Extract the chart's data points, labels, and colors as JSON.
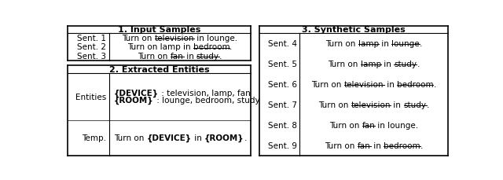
{
  "title1": "1. Input Samples",
  "title2": "2. Extracted Entities",
  "title3": "3. Synthetic Samples",
  "bg_color": "#ffffff",
  "text_color": "#000000",
  "font_size": 7.5,
  "input_parts": [
    [
      [
        "Turn on ",
        false
      ],
      [
        "television",
        true
      ],
      [
        " in lounge.",
        false
      ]
    ],
    [
      [
        "Turn on lamp in ",
        false
      ],
      [
        "bedroom",
        true
      ],
      [
        ".",
        false
      ]
    ],
    [
      [
        "Turn on ",
        false
      ],
      [
        "fan",
        true
      ],
      [
        " in ",
        false
      ],
      [
        "study",
        true
      ],
      [
        ".",
        false
      ]
    ]
  ],
  "input_labels": [
    "Sent. 1",
    "Sent. 2",
    "Sent. 3"
  ],
  "synthetic_labels": [
    "Sent. 4",
    "Sent. 5",
    "Sent. 6",
    "Sent. 7",
    "Sent. 8",
    "Sent. 9"
  ],
  "synthetic_parts": [
    [
      [
        "Turn on ",
        false
      ],
      [
        "lamp",
        true
      ],
      [
        " in ",
        false
      ],
      [
        "lounge",
        true
      ],
      [
        ".",
        false
      ]
    ],
    [
      [
        "Turn on ",
        false
      ],
      [
        "lamp",
        true
      ],
      [
        " in ",
        false
      ],
      [
        "study",
        true
      ],
      [
        ".",
        false
      ]
    ],
    [
      [
        "Turn on ",
        false
      ],
      [
        "television",
        true
      ],
      [
        " in ",
        false
      ],
      [
        "bedroom",
        true
      ],
      [
        ".",
        false
      ]
    ],
    [
      [
        "Turn on ",
        false
      ],
      [
        "television",
        true
      ],
      [
        " in ",
        false
      ],
      [
        "study",
        true
      ],
      [
        ".",
        false
      ]
    ],
    [
      [
        "Turn on ",
        false
      ],
      [
        "fan",
        true
      ],
      [
        " in lounge.",
        false
      ]
    ],
    [
      [
        "Turn on ",
        false
      ],
      [
        "fan",
        true
      ],
      [
        " in ",
        false
      ],
      [
        "bedroom",
        true
      ],
      [
        ".",
        false
      ]
    ]
  ]
}
